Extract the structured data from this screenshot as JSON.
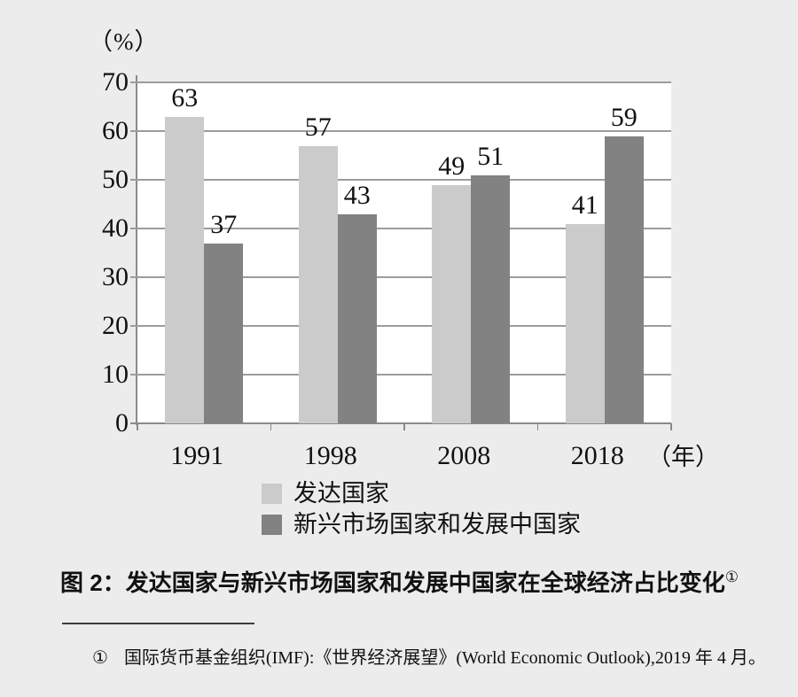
{
  "page": {
    "background": "#ececec"
  },
  "chart_data": {
    "type": "bar",
    "categories": [
      "1991",
      "1998",
      "2008",
      "2018"
    ],
    "series": [
      {
        "name": "发达国家",
        "color": "#cbcbcb",
        "values": [
          63,
          57,
          49,
          41
        ]
      },
      {
        "name": "新兴市场国家和发展中国家",
        "color": "#828282",
        "values": [
          37,
          43,
          51,
          59
        ]
      }
    ],
    "title": "",
    "ylabel_unit": "（%）",
    "xlabel_unit": "（年）",
    "ylim": [
      0,
      70
    ],
    "ytick_step": 10,
    "grid": true,
    "legend_position": "bottom-left",
    "value_labels": true
  },
  "caption": {
    "label": "图 2：",
    "text": "发达国家与新兴市场国家和发展中国家在全球经济占比变化",
    "footnote_ref": "①"
  },
  "footnote": {
    "marker": "①",
    "text": "国际货币基金组织(IMF):《世界经济展望》(World Economic Outlook),2019 年 4 月。"
  },
  "colors": {
    "grid": "#9c9c9c",
    "axis": "#8a8a8a",
    "text": "#111111",
    "plot_bg": "#ffffff"
  }
}
